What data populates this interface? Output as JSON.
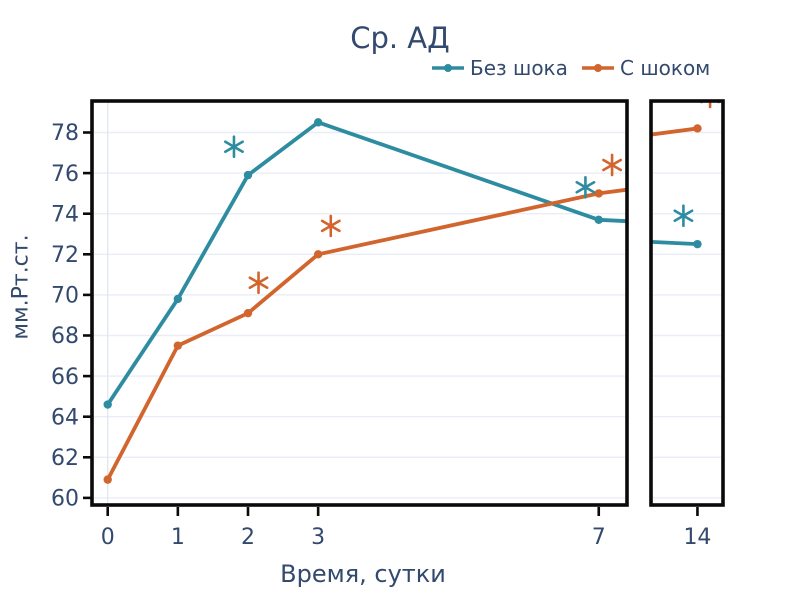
{
  "chart_data": {
    "type": "line",
    "title": "Ср. АД",
    "xlabel": "Время, сутки",
    "ylabel": "мм.Рт.ст.",
    "x_ticks": [
      0,
      1,
      2,
      3,
      7,
      14
    ],
    "y_ticks": [
      60,
      62,
      64,
      66,
      68,
      70,
      72,
      74,
      76,
      78
    ],
    "ylim": [
      59.6,
      79.6
    ],
    "grid": "horizontal, light blue-grey; zeroline at x=0",
    "axis_break": {
      "description": "broken x-axis: left panel shows days 0-7, narrow right panel shows day 14",
      "left_panel_day_range": [
        -0.22,
        7.4
      ],
      "right_panel_day_range": [
        13.35,
        14.37
      ]
    },
    "legend_position": "top-right above plot",
    "series": [
      {
        "name": "Без шока",
        "color": "#2e8ca1",
        "x": [
          0,
          1,
          2,
          3,
          7,
          14
        ],
        "y": [
          64.6,
          69.8,
          75.9,
          78.5,
          73.7,
          72.5
        ]
      },
      {
        "name": "С шоком",
        "color": "#d2642e",
        "x": [
          0,
          1,
          2,
          3,
          7,
          14
        ],
        "y": [
          60.9,
          67.5,
          69.1,
          72.0,
          75.0,
          78.2
        ]
      }
    ],
    "annotations": [
      {
        "symbol": "*",
        "series": "Без шока",
        "x": 1.8,
        "y": 77.3,
        "color": "#2e8ca1"
      },
      {
        "symbol": "*",
        "series": "С шоком",
        "x": 2.15,
        "y": 70.6,
        "color": "#d2642e"
      },
      {
        "symbol": "*",
        "series": "С шоком",
        "x": 3.18,
        "y": 73.4,
        "color": "#d2642e"
      },
      {
        "symbol": "*",
        "series": "Без шока",
        "x": 6.81,
        "y": 75.3,
        "color": "#2e8ca1"
      },
      {
        "symbol": "*",
        "series": "С шоком",
        "x": 7.19,
        "y": 76.4,
        "color": "#d2642e"
      },
      {
        "symbol": "*",
        "series": "Без шока",
        "x": 13.8,
        "y": 73.9,
        "color": "#2e8ca1"
      },
      {
        "symbol": "*",
        "series": "С шоком",
        "x": 14.18,
        "y": 79.75,
        "color": "#d2642e",
        "note": "clipped by top spine"
      }
    ]
  },
  "legend": {
    "items": [
      {
        "label": "Без шока",
        "color": "#2e8ca1"
      },
      {
        "label": "С шоком",
        "color": "#d2642e"
      }
    ]
  },
  "colors": {
    "text": "#33496d",
    "spine": "#0a0a0a",
    "grid": "#e9edf6",
    "zeroline": "#e2e8f3",
    "background": "#ffffff"
  }
}
